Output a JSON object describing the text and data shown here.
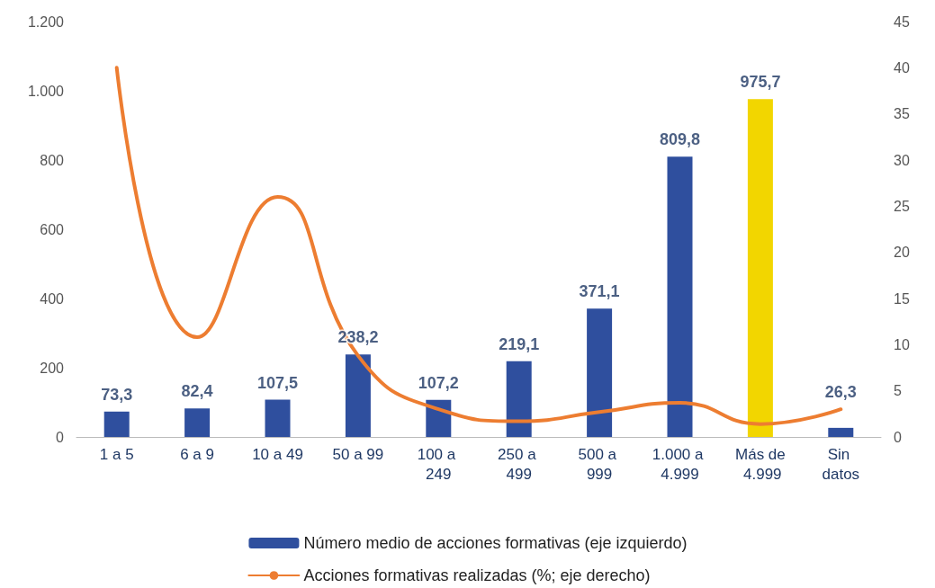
{
  "chart_data": {
    "type": "bar",
    "categories": [
      "1 a 5",
      "6 a 9",
      "10 a 49",
      "50 a 99",
      "100 a 249",
      "250 a 499",
      "500 a 999",
      "1.000 a 4.999",
      "Más de 4.999",
      "Sin datos"
    ],
    "series": [
      {
        "name": "Número medio de acciones formativas (eje izquierdo)",
        "color": "#2f4f9e",
        "colors": [
          "#2f4f9e",
          "#2f4f9e",
          "#2f4f9e",
          "#2f4f9e",
          "#2f4f9e",
          "#2f4f9e",
          "#2f4f9e",
          "#2f4f9e",
          "#f2d600",
          "#2f4f9e"
        ],
        "values": [
          73.3,
          82.4,
          107.5,
          238.2,
          107.2,
          219.1,
          371.1,
          809.8,
          975.7,
          26.3
        ],
        "value_labels": [
          "73,3",
          "82,4",
          "107,5",
          "238,2",
          "107,2",
          "219,1",
          "371,1",
          "809,8",
          "975,7",
          "26,3"
        ]
      },
      {
        "name": "Acciones formativas realizadas (%; eje derecho)",
        "type": "line",
        "axis": "y2",
        "color": "#ed7d31",
        "values": [
          40,
          10.8,
          26,
          8.8,
          3.0,
          1.7,
          2.7,
          3.7,
          1.4,
          3.0
        ]
      }
    ],
    "ylim": [
      0,
      1200
    ],
    "yticks": [
      0,
      200,
      400,
      600,
      800,
      {
        "value": 1000,
        "label": "1.000"
      },
      {
        "value": 1200,
        "label": "1.200"
      }
    ],
    "y2lim": [
      0,
      45
    ],
    "y2ticks": [
      0,
      5,
      10,
      15,
      20,
      25,
      30,
      35,
      40,
      45
    ],
    "grid": false,
    "legend": "bottom",
    "marker": "none",
    "line_style": "solid"
  }
}
